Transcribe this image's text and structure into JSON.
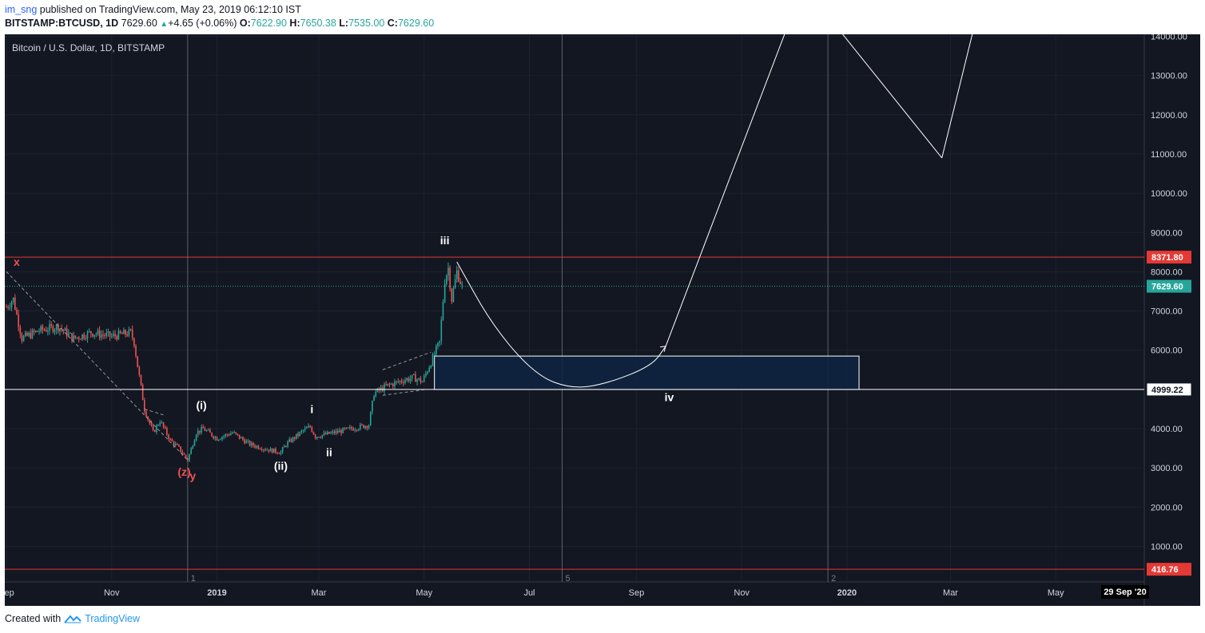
{
  "header": {
    "user": "im_sng",
    "published_text": "published on TradingView.com, May 23, 2019 06:12:10 IST",
    "symbol": "BITSTAMP:BTCUSD, 1D",
    "last": "7629.60",
    "change": "+4.65 (+0.06%)",
    "o_label": "O:",
    "o_value": "7622.90",
    "h_label": "H:",
    "h_value": "7650.38",
    "l_label": "L:",
    "l_value": "7535.00",
    "c_label": "C:",
    "c_value": "7629.60"
  },
  "footer": {
    "created_with": "Created with",
    "brand": "TradingView"
  },
  "colors": {
    "background": "#131722",
    "grid": "#1e2230",
    "up": "#26a69a",
    "down": "#ef5350",
    "red_line": "#e53935",
    "drawing": "#ffffff",
    "box_fill": "#0f2440"
  },
  "chart_data": {
    "type": "candlestick",
    "title": "Bitcoin / U.S. Dollar, 1D, BITSTAMP",
    "x_ticks": [
      "Sep",
      "Nov",
      "2019",
      "Mar",
      "May",
      "Jul",
      "Sep",
      "Nov",
      "2020",
      "Mar",
      "May"
    ],
    "y_ticks": [
      "14000.00",
      "13000.00",
      "12000.00",
      "11000.00",
      "10000.00",
      "9000.00",
      "8000.00",
      "7000.00",
      "6000.00",
      "5000.00",
      "4000.00",
      "3000.00",
      "2000.00",
      "1000.00"
    ],
    "ylim": [
      0,
      14000
    ],
    "crosshair_date_label": "29 Sep '20",
    "price_tags": [
      {
        "value": 8371.8,
        "label": "8371.80",
        "kind": "red"
      },
      {
        "value": 7629.6,
        "label": "7629.60",
        "kind": "last"
      },
      {
        "value": 4999.22,
        "label": "4999.22",
        "kind": "white"
      },
      {
        "value": 416.76,
        "label": "416.76",
        "kind": "red"
      }
    ],
    "horizontal_lines": [
      {
        "value": 8371.8,
        "style": "solid-red"
      },
      {
        "value": 7629.6,
        "style": "dotted-teal"
      },
      {
        "value": 4999.22,
        "style": "solid-white"
      },
      {
        "value": 416.76,
        "style": "solid-red"
      }
    ],
    "vertical_markers": [
      {
        "date": "2018-12-15",
        "label": "1"
      },
      {
        "date": "2019-07-20",
        "label": "5"
      },
      {
        "date": "2019-12-21",
        "label": "2"
      }
    ],
    "price_path": [
      [
        "2018-09-01",
        7100
      ],
      [
        "2018-09-05",
        7300
      ],
      [
        "2018-09-10",
        6300
      ],
      [
        "2018-09-20",
        6500
      ],
      [
        "2018-10-01",
        6600
      ],
      [
        "2018-10-10",
        6300
      ],
      [
        "2018-10-20",
        6450
      ],
      [
        "2018-11-01",
        6350
      ],
      [
        "2018-11-12",
        6450
      ],
      [
        "2018-11-14",
        6200
      ],
      [
        "2018-11-16",
        5600
      ],
      [
        "2018-11-20",
        4500
      ],
      [
        "2018-11-25",
        3900
      ],
      [
        "2018-11-29",
        4200
      ],
      [
        "2018-12-05",
        3700
      ],
      [
        "2018-12-10",
        3500
      ],
      [
        "2018-12-15",
        3200
      ],
      [
        "2018-12-20",
        3900
      ],
      [
        "2018-12-24",
        4000
      ],
      [
        "2019-01-01",
        3750
      ],
      [
        "2019-01-10",
        3900
      ],
      [
        "2019-01-20",
        3600
      ],
      [
        "2019-02-01",
        3450
      ],
      [
        "2019-02-07",
        3400
      ],
      [
        "2019-02-10",
        3600
      ],
      [
        "2019-02-20",
        3950
      ],
      [
        "2019-02-24",
        4050
      ],
      [
        "2019-02-27",
        3800
      ],
      [
        "2019-03-10",
        3900
      ],
      [
        "2019-03-20",
        4000
      ],
      [
        "2019-03-30",
        4100
      ],
      [
        "2019-04-02",
        4900
      ],
      [
        "2019-04-10",
        5100
      ],
      [
        "2019-04-20",
        5250
      ],
      [
        "2019-04-25",
        5300
      ],
      [
        "2019-04-30",
        5200
      ],
      [
        "2019-05-05",
        5700
      ],
      [
        "2019-05-10",
        6200
      ],
      [
        "2019-05-13",
        7800
      ],
      [
        "2019-05-15",
        8100
      ],
      [
        "2019-05-17",
        7300
      ],
      [
        "2019-05-20",
        8000
      ],
      [
        "2019-05-23",
        7629.6
      ]
    ],
    "rect_zone": {
      "x1": "2019-05-07",
      "x2": "2020-01-08",
      "y1": 4999.22,
      "y2": 5850
    },
    "projection_curve": [
      [
        "2019-05-20",
        8250
      ],
      [
        "2019-06-10",
        6600
      ],
      [
        "2019-07-05",
        5350
      ],
      [
        "2019-07-26",
        5010
      ],
      [
        "2019-08-15",
        5150
      ],
      [
        "2019-09-10",
        5600
      ],
      [
        "2019-09-18",
        6100
      ]
    ],
    "projection_lines": [
      [
        [
          "2019-09-18",
          6100
        ],
        [
          "2019-11-28",
          14300
        ]
      ],
      [
        [
          "2019-12-25",
          14300
        ],
        [
          "2020-02-25",
          10900
        ]
      ],
      [
        [
          "2020-02-25",
          10900
        ],
        [
          "2020-03-15",
          14300
        ]
      ]
    ],
    "dashed_lines": [
      [
        [
          "2018-09-01",
          8000
        ],
        [
          "2018-12-15",
          3200
        ]
      ],
      [
        [
          "2018-11-20",
          4500
        ],
        [
          "2018-12-01",
          4350
        ]
      ],
      [
        [
          "2019-04-07",
          5500
        ],
        [
          "2019-05-05",
          5950
        ]
      ],
      [
        [
          "2019-04-07",
          4850
        ],
        [
          "2019-05-01",
          4990
        ]
      ]
    ],
    "wave_labels": [
      {
        "text": "x",
        "date": "2018-09-07",
        "price": 8150,
        "color": "red"
      },
      {
        "text": "(z)",
        "date": "2018-12-13",
        "price": 2800,
        "color": "red"
      },
      {
        "text": "y",
        "date": "2018-12-18",
        "price": 2700,
        "color": "red"
      },
      {
        "text": "(i)",
        "date": "2018-12-23",
        "price": 4500,
        "color": "white"
      },
      {
        "text": "(ii)",
        "date": "2019-02-07",
        "price": 2950,
        "color": "white"
      },
      {
        "text": "i",
        "date": "2019-02-25",
        "price": 4400,
        "color": "white"
      },
      {
        "text": "ii",
        "date": "2019-03-07",
        "price": 3300,
        "color": "white"
      },
      {
        "text": "iii",
        "date": "2019-05-13",
        "price": 8700,
        "color": "white"
      },
      {
        "text": "iv",
        "date": "2019-09-20",
        "price": 4700,
        "color": "white"
      }
    ]
  }
}
